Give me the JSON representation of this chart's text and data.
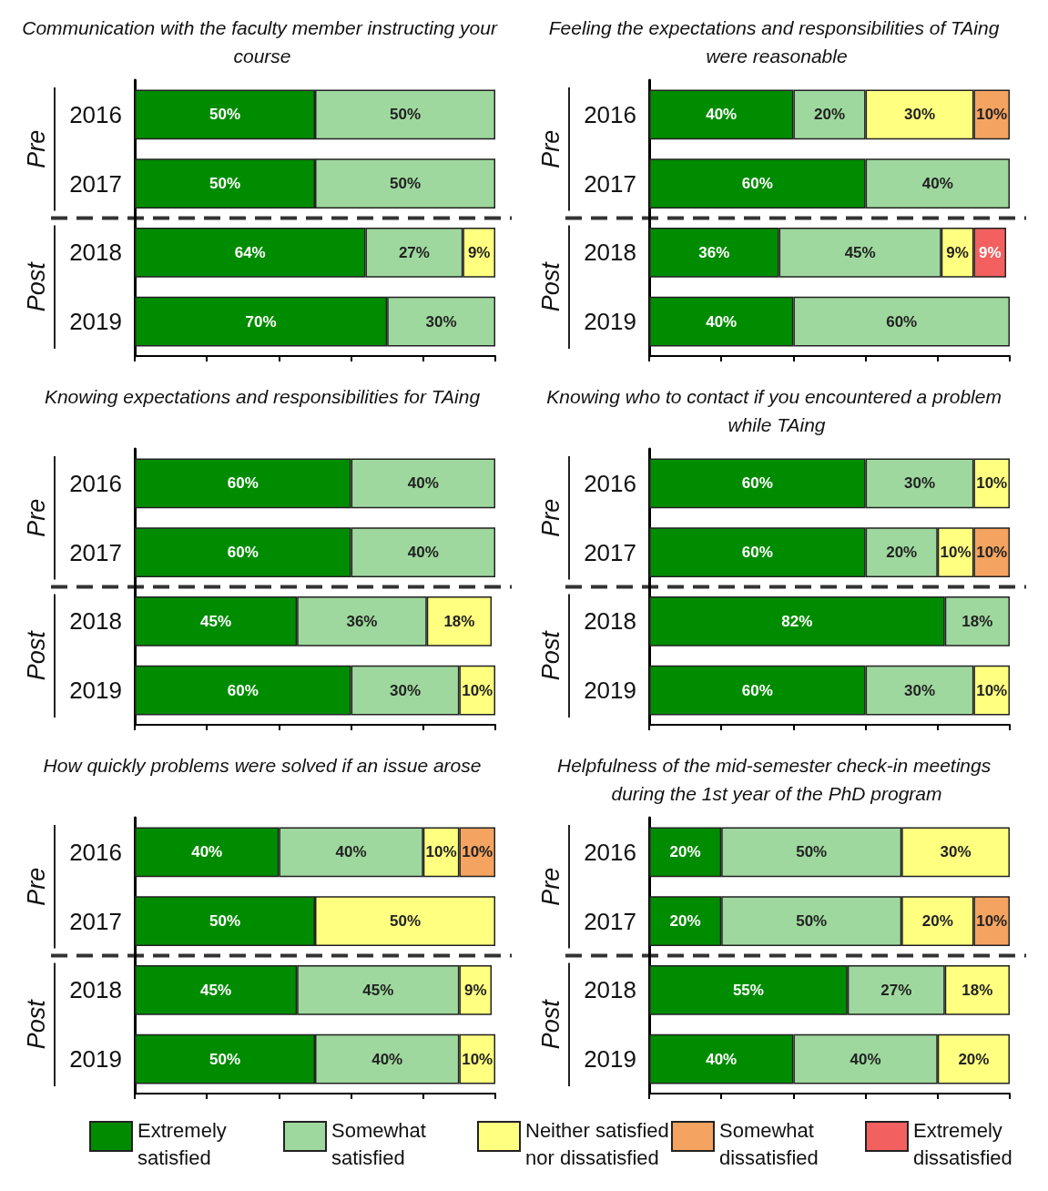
{
  "chart_data": [
    {
      "type": "bar",
      "orientation": "horizontal",
      "stacked": true,
      "title": "Communication with the faculty member instructing your course",
      "categories": [
        "2016",
        "2017",
        "2018",
        "2019"
      ],
      "tick_labels": "y",
      "annotations": [
        "Pre",
        "Post"
      ],
      "series": [
        {
          "color": "#008c00",
          "values": [
            50,
            50,
            64,
            70
          ],
          "value_labels": [
            "50%",
            "50%",
            "64%",
            "70%"
          ]
        },
        {
          "color": "#9ed89e",
          "values": [
            50,
            50,
            27,
            30
          ],
          "value_labels": [
            "50%",
            "50%",
            "27%",
            "30%"
          ]
        },
        {
          "color": "#ffff80",
          "values": [
            null,
            null,
            9,
            null
          ],
          "value_labels": [
            null,
            null,
            "9%",
            null
          ]
        }
      ]
    },
    {
      "type": "bar",
      "orientation": "horizontal",
      "stacked": true,
      "title": "Feeling the expectations and responsibilities of TAing were reasonable",
      "categories": [
        "2016",
        "2017",
        "2018",
        "2019"
      ],
      "tick_labels": "y",
      "annotations": [
        "Pre",
        "Post"
      ],
      "series": [
        {
          "color": "#008c00",
          "values": [
            40,
            60,
            36,
            40
          ],
          "value_labels": [
            "40%",
            "60%",
            "36%",
            "40%"
          ]
        },
        {
          "color": "#9ed89e",
          "values": [
            20,
            40,
            45,
            60
          ],
          "value_labels": [
            "20%",
            "40%",
            "45%",
            "60%"
          ]
        },
        {
          "color": "#ffff80",
          "values": [
            30,
            null,
            9,
            null
          ],
          "value_labels": [
            "30%",
            null,
            "9%",
            null
          ]
        },
        {
          "color": "#f4a460",
          "values": [
            10,
            null,
            null,
            null
          ],
          "value_labels": [
            "10%",
            null,
            null,
            null
          ]
        },
        {
          "color": "#f26060",
          "values": [
            null,
            null,
            9,
            null
          ],
          "value_labels": [
            null,
            null,
            "9%",
            null
          ]
        }
      ]
    },
    {
      "type": "bar",
      "orientation": "horizontal",
      "stacked": true,
      "title": "Knowing expectations and responsibilities for TAing",
      "categories": [
        "2016",
        "2017",
        "2018",
        "2019"
      ],
      "tick_labels": "y",
      "annotations": [
        "Pre",
        "Post"
      ],
      "series": [
        {
          "color": "#008c00",
          "values": [
            60,
            60,
            45,
            60
          ],
          "value_labels": [
            "60%",
            "60%",
            "45%",
            "60%"
          ]
        },
        {
          "color": "#9ed89e",
          "values": [
            40,
            40,
            36,
            30
          ],
          "value_labels": [
            "40%",
            "40%",
            "36%",
            "30%"
          ]
        },
        {
          "color": "#ffff80",
          "values": [
            null,
            null,
            18,
            10
          ],
          "value_labels": [
            null,
            null,
            "18%",
            "10%"
          ]
        }
      ]
    },
    {
      "type": "bar",
      "orientation": "horizontal",
      "stacked": true,
      "title": "Knowing who to contact if you encountered a problem while TAing",
      "categories": [
        "2016",
        "2017",
        "2018",
        "2019"
      ],
      "tick_labels": "y",
      "annotations": [
        "Pre",
        "Post"
      ],
      "series": [
        {
          "color": "#008c00",
          "values": [
            60,
            60,
            82,
            60
          ],
          "value_labels": [
            "60%",
            "60%",
            "82%",
            "60%"
          ]
        },
        {
          "color": "#9ed89e",
          "values": [
            30,
            20,
            18,
            30
          ],
          "value_labels": [
            "30%",
            "20%",
            "18%",
            "30%"
          ]
        },
        {
          "color": "#ffff80",
          "values": [
            10,
            10,
            null,
            10
          ],
          "value_labels": [
            "10%",
            "10%",
            null,
            "10%"
          ]
        },
        {
          "color": "#f4a460",
          "values": [
            null,
            10,
            null,
            null
          ],
          "value_labels": [
            null,
            "10%",
            null,
            null
          ]
        }
      ]
    },
    {
      "type": "bar",
      "orientation": "horizontal",
      "stacked": true,
      "title": "How quickly problems were solved if an issue arose",
      "categories": [
        "2016",
        "2017",
        "2018",
        "2019"
      ],
      "tick_labels": "y",
      "annotations": [
        "Pre",
        "Post"
      ],
      "series": [
        {
          "color": "#008c00",
          "values": [
            40,
            50,
            45,
            50
          ],
          "value_labels": [
            "40%",
            "50%",
            "45%",
            "50%"
          ]
        },
        {
          "color": "#9ed89e",
          "values": [
            40,
            null,
            45,
            40
          ],
          "value_labels": [
            "40%",
            null,
            "45%",
            "40%"
          ]
        },
        {
          "color": "#ffff80",
          "values": [
            10,
            50,
            9,
            10
          ],
          "value_labels": [
            "10%",
            "50%",
            "9%",
            "10%"
          ]
        },
        {
          "color": "#f4a460",
          "values": [
            10,
            null,
            null,
            null
          ],
          "value_labels": [
            "10%",
            null,
            null,
            null
          ]
        }
      ]
    },
    {
      "type": "bar",
      "orientation": "horizontal",
      "stacked": true,
      "title": "Helpfulness of the mid-semester check-in meetings during the 1st year of the PhD program",
      "categories": [
        "2016",
        "2017",
        "2018",
        "2019"
      ],
      "tick_labels": "y",
      "legend": "bottom",
      "annotations": [
        "Pre",
        "Post"
      ],
      "series": [
        {
          "name": "Extremely satisfied",
          "color": "#008c00",
          "values": [
            20,
            20,
            55,
            40
          ],
          "value_labels": [
            "20%",
            "20%",
            "55%",
            "40%"
          ]
        },
        {
          "name": "Somewhat satisfied",
          "color": "#9ed89e",
          "values": [
            50,
            50,
            27,
            40
          ],
          "value_labels": [
            "50%",
            "50%",
            "27%",
            "40%"
          ]
        },
        {
          "name": "Neither satisfied nor dissatisfied",
          "color": "#ffff80",
          "values": [
            30,
            20,
            18,
            20
          ],
          "value_labels": [
            "30%",
            "20%",
            "18%",
            "20%"
          ]
        },
        {
          "name": "Somewhat dissatisfied",
          "color": "#f4a460",
          "values": [
            null,
            10,
            null,
            null
          ],
          "value_labels": [
            null,
            "10%",
            null,
            null
          ]
        },
        {
          "name": "Extremely dissatisfied",
          "color": "#f26060",
          "values": [
            null,
            null,
            null,
            null
          ]
        }
      ]
    }
  ]
}
